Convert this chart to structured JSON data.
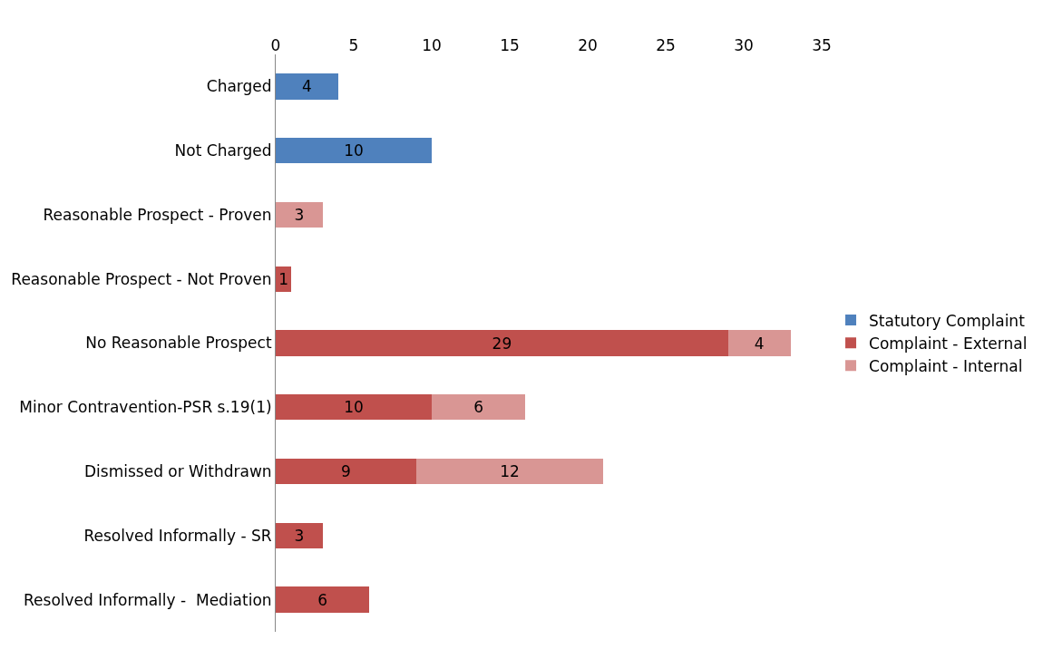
{
  "chart_data": {
    "type": "bar",
    "orientation": "horizontal",
    "stacked": true,
    "categories": [
      "Charged",
      "Not Charged",
      "Reasonable Prospect - Proven",
      "Reasonable Prospect - Not Proven",
      "No Reasonable Prospect",
      "Minor Contravention-PSR s.19(1)",
      "Dismissed or Withdrawn",
      "Resolved Informally - SR",
      "Resolved Informally -  Mediation"
    ],
    "series": [
      {
        "name": "Statutory Complaint",
        "color": "#4f81bd",
        "values": [
          4,
          10,
          null,
          null,
          null,
          null,
          null,
          null,
          null
        ]
      },
      {
        "name": "Complaint - External",
        "color": "#c0504d",
        "values": [
          null,
          null,
          null,
          1,
          29,
          10,
          9,
          3,
          6
        ]
      },
      {
        "name": "Complaint - Internal",
        "color": "#d99694",
        "values": [
          null,
          null,
          3,
          null,
          4,
          6,
          12,
          null,
          null
        ]
      }
    ],
    "xlim": [
      0,
      35
    ],
    "xticks": [
      0,
      5,
      10,
      15,
      20,
      25,
      30,
      35
    ],
    "data_labels": true,
    "legend": "right"
  }
}
